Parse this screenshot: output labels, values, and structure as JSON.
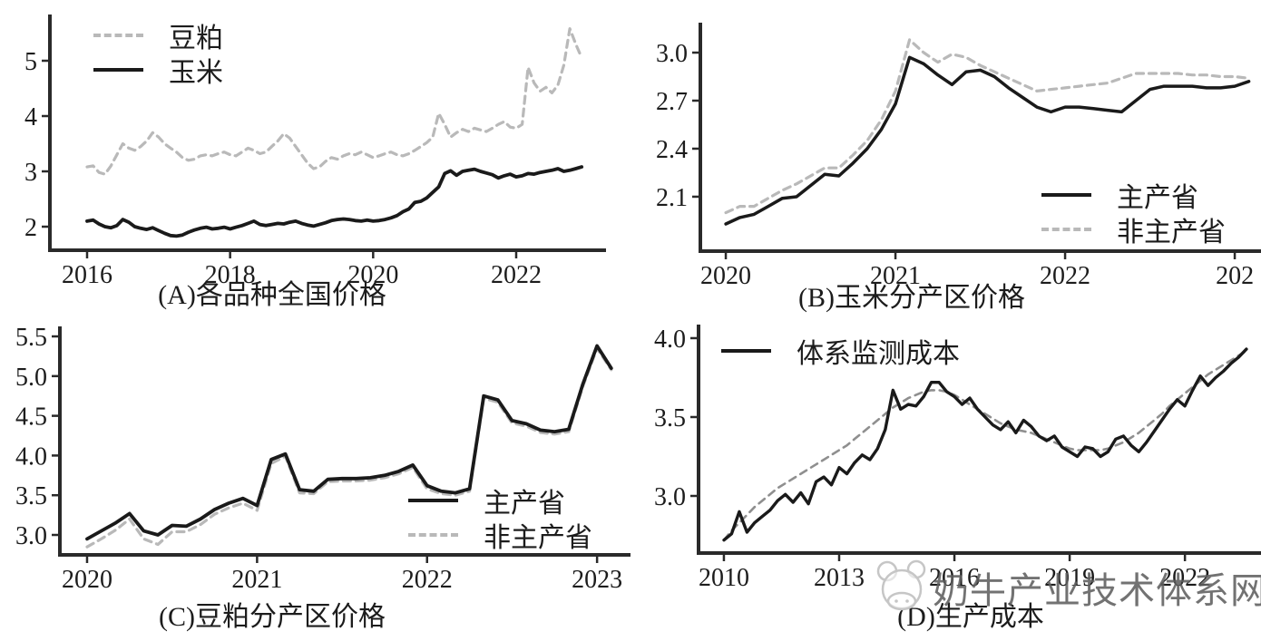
{
  "page": {
    "background": "#ffffff"
  },
  "colors": {
    "axis": "#2a2a2a",
    "text": "#1c1c1c",
    "line_dark": "#1a1a1a",
    "line_light_gray": "#b9b9b9",
    "trend_gray": "#8f8f8f"
  },
  "watermark": {
    "text": "奶牛产业技术体系网",
    "logo": "cow-face-logo"
  },
  "chart_data": [
    {
      "id": "A",
      "type": "line",
      "caption": "(A)各品种全国价格",
      "xlim": [
        2015.48,
        2023.256
      ],
      "ylim": [
        1.574,
        5.836
      ],
      "grid": false,
      "xticks": [
        {
          "v": 2016,
          "label": "2016"
        },
        {
          "v": 2018,
          "label": "2018"
        },
        {
          "v": 2020,
          "label": "2020"
        },
        {
          "v": 2022,
          "label": "2022"
        }
      ],
      "yticks": [
        {
          "v": 2,
          "label": "2"
        },
        {
          "v": 3,
          "label": "3"
        },
        {
          "v": 4,
          "label": "4"
        },
        {
          "v": 5,
          "label": "5"
        }
      ],
      "legend": {
        "position": "top-left",
        "items": [
          {
            "label": "豆粕",
            "style": "dashed"
          },
          {
            "label": "玉米",
            "style": "solid"
          }
        ]
      },
      "series": [
        {
          "name": "豆粕",
          "style": "dashed",
          "color": "#b9b9b9",
          "width": 3.2,
          "x0": 2016,
          "dx": 0.083333,
          "values": [
            3.08,
            3.1,
            2.98,
            2.95,
            3.1,
            3.3,
            3.5,
            3.42,
            3.38,
            3.45,
            3.55,
            3.7,
            3.62,
            3.5,
            3.42,
            3.35,
            3.25,
            3.2,
            3.22,
            3.28,
            3.3,
            3.28,
            3.32,
            3.35,
            3.3,
            3.28,
            3.35,
            3.42,
            3.38,
            3.32,
            3.35,
            3.45,
            3.55,
            3.68,
            3.6,
            3.45,
            3.3,
            3.15,
            3.05,
            3.08,
            3.18,
            3.25,
            3.22,
            3.28,
            3.32,
            3.3,
            3.35,
            3.3,
            3.25,
            3.28,
            3.32,
            3.35,
            3.3,
            3.28,
            3.32,
            3.38,
            3.45,
            3.52,
            3.62,
            4.05,
            3.85,
            3.62,
            3.7,
            3.76,
            3.72,
            3.78,
            3.75,
            3.72,
            3.78,
            3.85,
            3.9,
            3.8,
            3.78,
            3.85,
            4.88,
            4.6,
            4.45,
            4.52,
            4.42,
            4.56,
            4.92,
            5.58,
            5.3,
            5.05
          ]
        },
        {
          "name": "玉米",
          "style": "solid",
          "color": "#1a1a1a",
          "width": 3.8,
          "x0": 2016,
          "dx": 0.083333,
          "values": [
            2.1,
            2.12,
            2.05,
            2.0,
            1.98,
            2.02,
            2.13,
            2.08,
            2.0,
            1.97,
            1.95,
            1.98,
            1.93,
            1.88,
            1.84,
            1.83,
            1.85,
            1.9,
            1.94,
            1.97,
            1.99,
            1.96,
            1.97,
            1.99,
            1.96,
            1.99,
            2.02,
            2.06,
            2.1,
            2.04,
            2.02,
            2.04,
            2.06,
            2.05,
            2.08,
            2.1,
            2.06,
            2.03,
            2.01,
            2.04,
            2.07,
            2.11,
            2.13,
            2.14,
            2.13,
            2.11,
            2.1,
            2.12,
            2.1,
            2.11,
            2.13,
            2.16,
            2.2,
            2.27,
            2.32,
            2.44,
            2.46,
            2.52,
            2.62,
            2.72,
            2.96,
            3.01,
            2.93,
            3.0,
            3.02,
            3.04,
            3.0,
            2.97,
            2.94,
            2.88,
            2.92,
            2.95,
            2.9,
            2.92,
            2.96,
            2.95,
            2.98,
            3.0,
            3.02,
            3.05,
            3.0,
            3.02,
            3.05,
            3.08
          ]
        }
      ]
    },
    {
      "id": "B",
      "type": "line",
      "caption": "(B)玉米分产区价格",
      "xlim": [
        2019.85,
        2023.128
      ],
      "ylim": [
        1.76,
        3.187
      ],
      "grid": false,
      "xticks": [
        {
          "v": 2020,
          "label": "2020"
        },
        {
          "v": 2021,
          "label": "2021"
        },
        {
          "v": 2022,
          "label": "2022"
        },
        {
          "v": 2023,
          "label": "202"
        }
      ],
      "yticks": [
        {
          "v": 2.1,
          "label": "2.1"
        },
        {
          "v": 2.4,
          "label": "2.4"
        },
        {
          "v": 2.7,
          "label": "2.7"
        },
        {
          "v": 3.0,
          "label": "3.0"
        }
      ],
      "legend": {
        "position": "bottom-right",
        "items": [
          {
            "label": "主产省",
            "style": "solid"
          },
          {
            "label": "非主产省",
            "style": "dashed"
          }
        ]
      },
      "series": [
        {
          "name": "非主产省",
          "style": "dashed",
          "color": "#b9b9b9",
          "width": 3.2,
          "x0": 2020,
          "dx": 0.083333,
          "values": [
            2.0,
            2.04,
            2.04,
            2.09,
            2.14,
            2.18,
            2.23,
            2.28,
            2.28,
            2.36,
            2.45,
            2.58,
            2.76,
            3.08,
            3.0,
            2.94,
            2.99,
            2.97,
            2.92,
            2.88,
            2.84,
            2.8,
            2.76,
            2.77,
            2.78,
            2.79,
            2.8,
            2.81,
            2.84,
            2.87,
            2.87,
            2.87,
            2.87,
            2.86,
            2.86,
            2.85,
            2.85,
            2.84
          ]
        },
        {
          "name": "主产省",
          "style": "solid",
          "color": "#1a1a1a",
          "width": 3.5,
          "x0": 2020,
          "dx": 0.083333,
          "values": [
            1.93,
            1.97,
            1.99,
            2.04,
            2.09,
            2.1,
            2.17,
            2.24,
            2.23,
            2.31,
            2.4,
            2.52,
            2.68,
            2.97,
            2.93,
            2.86,
            2.8,
            2.88,
            2.89,
            2.85,
            2.78,
            2.72,
            2.66,
            2.63,
            2.66,
            2.66,
            2.65,
            2.64,
            2.63,
            2.7,
            2.77,
            2.79,
            2.79,
            2.79,
            2.78,
            2.78,
            2.79,
            2.82
          ]
        }
      ]
    },
    {
      "id": "C",
      "type": "line",
      "caption": "(C)豆粕分产区价格",
      "xlim": [
        2019.84,
        2023.17
      ],
      "ylim": [
        2.749,
        5.626
      ],
      "grid": false,
      "xticks": [
        {
          "v": 2020,
          "label": "2020"
        },
        {
          "v": 2021,
          "label": "2021"
        },
        {
          "v": 2022,
          "label": "2022"
        },
        {
          "v": 2023,
          "label": "2023"
        }
      ],
      "yticks": [
        {
          "v": 3.0,
          "label": "3.0"
        },
        {
          "v": 3.5,
          "label": "3.5"
        },
        {
          "v": 4.0,
          "label": "4.0"
        },
        {
          "v": 4.5,
          "label": "4.5"
        },
        {
          "v": 5.0,
          "label": "5.0"
        },
        {
          "v": 5.5,
          "label": "5.5"
        }
      ],
      "legend": {
        "position": "right-middle",
        "items": [
          {
            "label": "主产省",
            "style": "solid"
          },
          {
            "label": "非主产省",
            "style": "dashed"
          }
        ]
      },
      "series": [
        {
          "name": "非主产省",
          "style": "dashed",
          "color": "#b9b9b9",
          "width": 3.2,
          "x0": 2020,
          "dx": 0.083333,
          "values": [
            2.85,
            2.95,
            3.06,
            3.2,
            2.95,
            2.88,
            3.04,
            3.04,
            3.13,
            3.26,
            3.34,
            3.4,
            3.31,
            3.9,
            3.99,
            3.53,
            3.52,
            3.67,
            3.68,
            3.68,
            3.69,
            3.72,
            3.77,
            3.85,
            3.58,
            3.52,
            3.5,
            3.55,
            4.72,
            4.67,
            4.41,
            4.37,
            4.29,
            4.27,
            4.3,
            4.87,
            5.35,
            5.08
          ]
        },
        {
          "name": "主产省",
          "style": "solid",
          "color": "#1a1a1a",
          "width": 3.8,
          "x0": 2020,
          "dx": 0.083333,
          "values": [
            2.95,
            3.05,
            3.15,
            3.27,
            3.05,
            3.0,
            3.12,
            3.11,
            3.2,
            3.32,
            3.4,
            3.46,
            3.37,
            3.95,
            4.02,
            3.57,
            3.55,
            3.7,
            3.71,
            3.71,
            3.72,
            3.75,
            3.8,
            3.88,
            3.62,
            3.55,
            3.53,
            3.58,
            4.75,
            4.7,
            4.44,
            4.4,
            4.32,
            4.3,
            4.33,
            4.9,
            5.38,
            5.1
          ]
        }
      ]
    },
    {
      "id": "D",
      "type": "line",
      "caption": "(D)生产成本",
      "xlim": [
        2009.34,
        2023.98
      ],
      "ylim": [
        2.638,
        4.086
      ],
      "grid": false,
      "xticks": [
        {
          "v": 2010,
          "label": "2010"
        },
        {
          "v": 2013,
          "label": "2013"
        },
        {
          "v": 2016,
          "label": "2016"
        },
        {
          "v": 2019,
          "label": "2019"
        },
        {
          "v": 2022,
          "label": "2022"
        }
      ],
      "yticks": [
        {
          "v": 3.0,
          "label": "3.0"
        },
        {
          "v": 3.5,
          "label": "3.5"
        },
        {
          "v": 4.0,
          "label": "4.0"
        }
      ],
      "legend": {
        "position": "top-left",
        "items": [
          {
            "label": "体系监测成本",
            "style": "solid"
          }
        ]
      },
      "series": [
        {
          "name": "趋势",
          "style": "dashed",
          "color": "#8f8f8f",
          "width": 2.6,
          "x0": 2010,
          "dx": 0.2,
          "values": [
            2.72,
            2.78,
            2.83,
            2.88,
            2.93,
            2.97,
            3.01,
            3.05,
            3.08,
            3.11,
            3.14,
            3.17,
            3.2,
            3.23,
            3.26,
            3.29,
            3.32,
            3.36,
            3.4,
            3.44,
            3.48,
            3.52,
            3.56,
            3.59,
            3.62,
            3.64,
            3.66,
            3.67,
            3.67,
            3.66,
            3.64,
            3.61,
            3.58,
            3.55,
            3.52,
            3.49,
            3.46,
            3.44,
            3.42,
            3.41,
            3.4,
            3.38,
            3.36,
            3.34,
            3.32,
            3.3,
            3.29,
            3.29,
            3.29,
            3.29,
            3.3,
            3.32,
            3.34,
            3.37,
            3.4,
            3.44,
            3.48,
            3.52,
            3.57,
            3.61,
            3.65,
            3.69,
            3.73,
            3.77,
            3.8,
            3.83,
            3.86,
            3.89,
            3.92
          ]
        },
        {
          "name": "体系监测成本",
          "style": "solid",
          "color": "#1a1a1a",
          "width": 3.4,
          "x0": 2010,
          "dx": 0.2,
          "values": [
            2.72,
            2.76,
            2.9,
            2.77,
            2.83,
            2.87,
            2.91,
            2.97,
            3.01,
            2.96,
            3.02,
            2.95,
            3.09,
            3.12,
            3.07,
            3.18,
            3.14,
            3.21,
            3.26,
            3.23,
            3.3,
            3.42,
            3.67,
            3.55,
            3.58,
            3.57,
            3.63,
            3.72,
            3.72,
            3.66,
            3.63,
            3.58,
            3.62,
            3.55,
            3.5,
            3.45,
            3.42,
            3.47,
            3.4,
            3.48,
            3.44,
            3.38,
            3.35,
            3.38,
            3.31,
            3.28,
            3.25,
            3.31,
            3.3,
            3.25,
            3.28,
            3.36,
            3.38,
            3.32,
            3.28,
            3.34,
            3.41,
            3.48,
            3.55,
            3.61,
            3.57,
            3.67,
            3.76,
            3.7,
            3.75,
            3.79,
            3.84,
            3.88,
            3.93
          ]
        }
      ]
    }
  ]
}
